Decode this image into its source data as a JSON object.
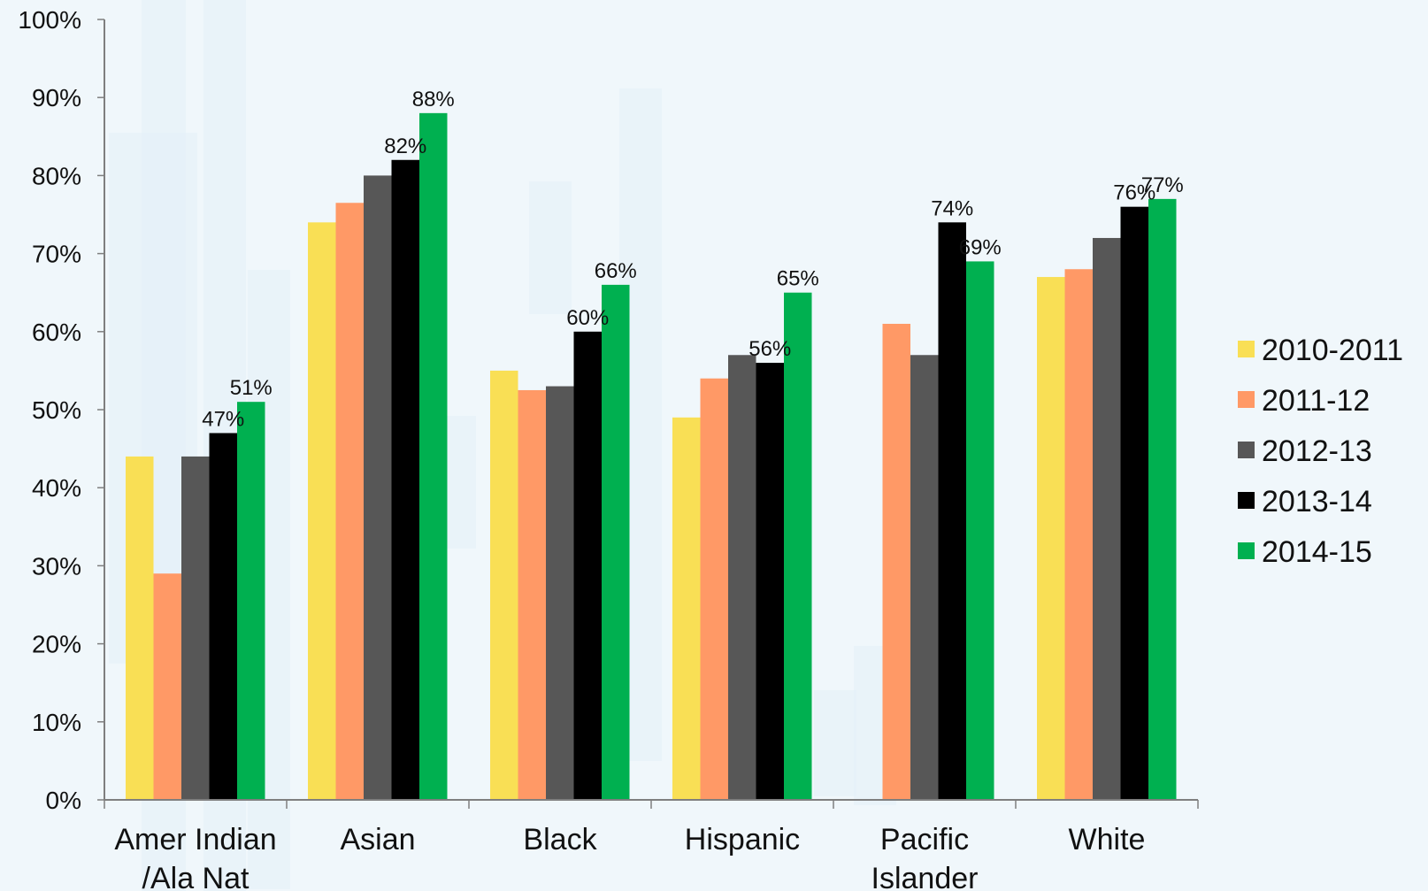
{
  "chart_data": {
    "type": "bar",
    "categories": [
      [
        "Amer Indian",
        "/Ala Nat"
      ],
      [
        "Asian"
      ],
      [
        "Black"
      ],
      [
        "Hispanic"
      ],
      [
        "Pacific",
        "Islander"
      ],
      [
        "White"
      ]
    ],
    "series": [
      {
        "name": "2010-2011",
        "color": "#f9df55",
        "values": [
          44,
          74,
          55,
          49,
          null,
          67
        ]
      },
      {
        "name": "2011-12",
        "color": "#ff9966",
        "values": [
          29,
          76.5,
          52.5,
          54,
          61,
          68
        ]
      },
      {
        "name": "2012-13",
        "color": "#575757",
        "values": [
          44,
          80,
          53,
          57,
          57,
          72
        ]
      },
      {
        "name": "2013-14",
        "color": "#000000",
        "values": [
          47,
          82,
          60,
          56,
          74,
          76
        ]
      },
      {
        "name": "2014-15",
        "color": "#00b050",
        "values": [
          51,
          88,
          66,
          65,
          69,
          77
        ]
      }
    ],
    "data_labels": [
      {
        "category": 0,
        "series": 3,
        "text": "47%"
      },
      {
        "category": 0,
        "series": 4,
        "text": "51%"
      },
      {
        "category": 1,
        "series": 3,
        "text": "82%"
      },
      {
        "category": 1,
        "series": 4,
        "text": "88%"
      },
      {
        "category": 2,
        "series": 3,
        "text": "60%"
      },
      {
        "category": 2,
        "series": 4,
        "text": "66%"
      },
      {
        "category": 3,
        "series": 3,
        "text": "56%"
      },
      {
        "category": 3,
        "series": 4,
        "text": "65%"
      },
      {
        "category": 4,
        "series": 3,
        "text": "74%"
      },
      {
        "category": 4,
        "series": 4,
        "text": "69%"
      },
      {
        "category": 5,
        "series": 3,
        "text": "76%"
      },
      {
        "category": 5,
        "series": 4,
        "text": "77%"
      }
    ],
    "ylim": [
      0,
      100
    ],
    "yticks": [
      "0%",
      "10%",
      "20%",
      "30%",
      "40%",
      "50%",
      "60%",
      "70%",
      "80%",
      "90%",
      "100%"
    ],
    "grid": false,
    "legend_position": "right"
  }
}
